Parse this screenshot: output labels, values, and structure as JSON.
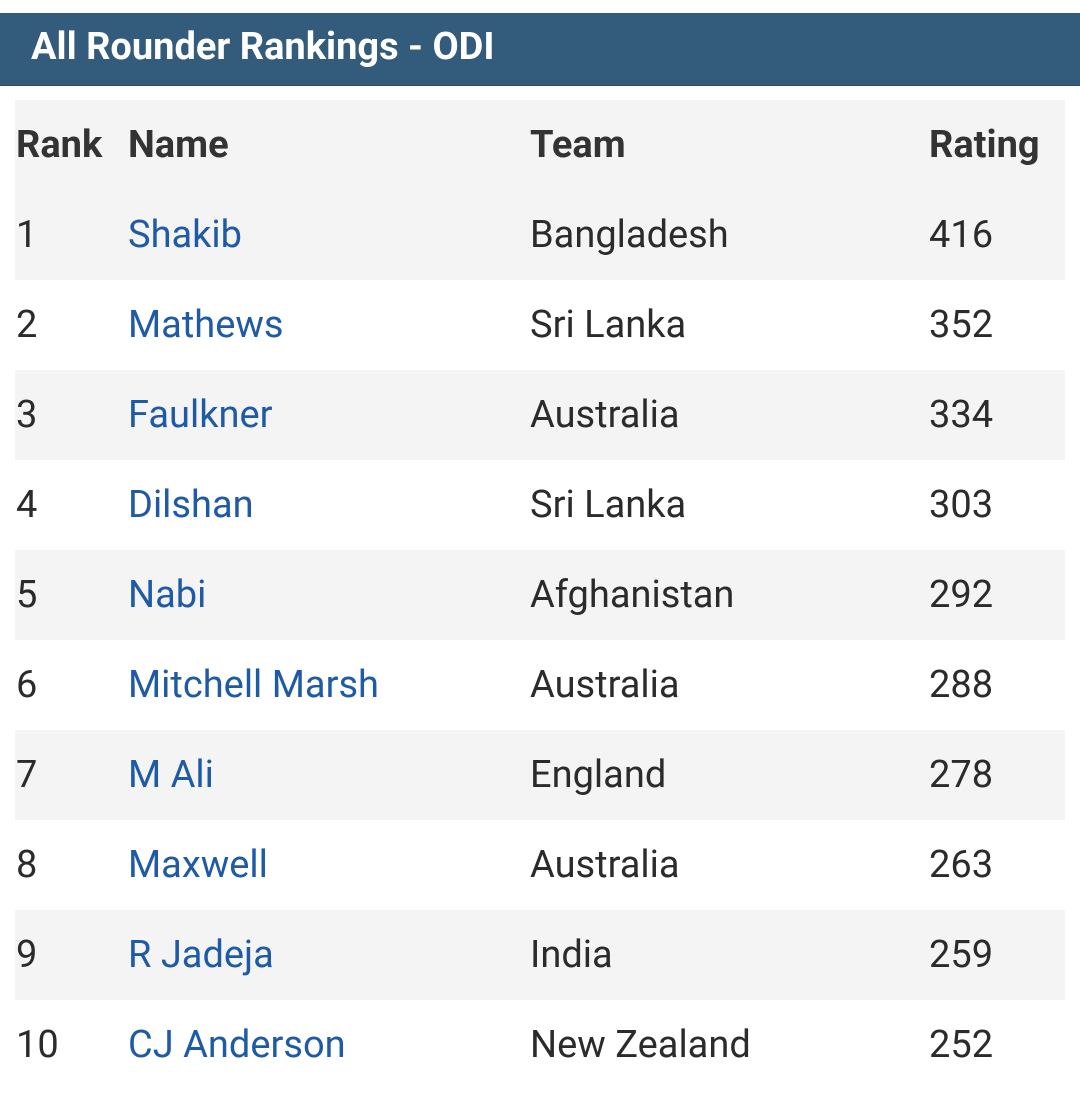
{
  "header": {
    "title": "All Rounder Rankings - ODI"
  },
  "table": {
    "columns": [
      "Rank",
      "Name",
      "Team",
      "Rating"
    ],
    "rows": [
      [
        "1",
        "Shakib",
        "Bangladesh",
        "416"
      ],
      [
        "2",
        "Mathews",
        "Sri Lanka",
        "352"
      ],
      [
        "3",
        "Faulkner",
        "Australia",
        "334"
      ],
      [
        "4",
        "Dilshan",
        "Sri Lanka",
        "303"
      ],
      [
        "5",
        "Nabi",
        "Afghanistan",
        "292"
      ],
      [
        "6",
        "Mitchell Marsh",
        "Australia",
        "288"
      ],
      [
        "7",
        "M Ali",
        "England",
        "278"
      ],
      [
        "8",
        "Maxwell",
        "Australia",
        "263"
      ],
      [
        "9",
        "R Jadeja",
        "India",
        "259"
      ],
      [
        "10",
        "CJ Anderson",
        "New Zealand",
        "252"
      ]
    ]
  }
}
